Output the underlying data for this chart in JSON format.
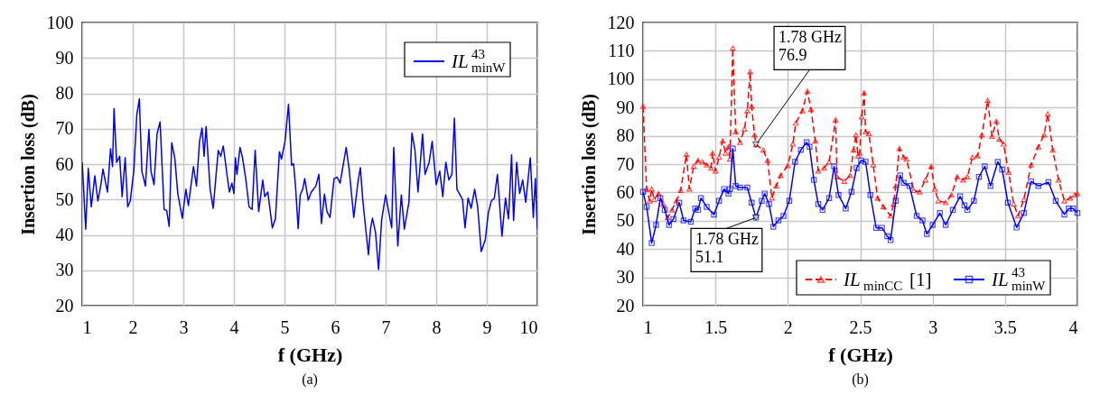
{
  "chart_data": [
    {
      "type": "line",
      "xlabel": "f (GHz)",
      "ylabel": "Insertion loss (dB)",
      "xlim": [
        1,
        10
      ],
      "xticks": [
        1,
        2,
        3,
        4,
        5,
        6,
        7,
        8,
        9,
        10
      ],
      "ylim": [
        20,
        100
      ],
      "yticks": [
        20,
        30,
        40,
        50,
        60,
        70,
        80,
        90,
        100
      ],
      "grid": true,
      "legend": "top right",
      "series": [
        {
          "name": "IL$^{43}$$_{minW}$",
          "color": "#0000ff",
          "line_style": "solid",
          "x": [
            1.0,
            1.07,
            1.12,
            1.18,
            1.25,
            1.31,
            1.37,
            1.41,
            1.5,
            1.56,
            1.6,
            1.63,
            1.68,
            1.74,
            1.79,
            1.85,
            1.9,
            1.95,
            2.02,
            2.08,
            2.13,
            2.18,
            2.25,
            2.32,
            2.36,
            2.42,
            2.48,
            2.54,
            2.62,
            2.67,
            2.72,
            2.77,
            2.83,
            2.89,
            2.98,
            3.05,
            3.1,
            3.2,
            3.26,
            3.32,
            3.37,
            3.41,
            3.45,
            3.53,
            3.59,
            3.69,
            3.74,
            3.79,
            3.87,
            3.91,
            3.96,
            4.0,
            4.03,
            4.06,
            4.12,
            4.17,
            4.23,
            4.3,
            4.36,
            4.42,
            4.49,
            4.57,
            4.61,
            4.67,
            4.76,
            4.82,
            4.9,
            4.94,
            5.01,
            5.08,
            5.14,
            5.18,
            5.22,
            5.27,
            5.31,
            5.36,
            5.4,
            5.47,
            5.53,
            5.62,
            5.68,
            5.73,
            5.79,
            5.84,
            5.9,
            5.98,
            6.04,
            6.1,
            6.16,
            6.22,
            6.28,
            6.37,
            6.45,
            6.5,
            6.55,
            6.61,
            6.66,
            6.7,
            6.74,
            6.8,
            6.86,
            6.92,
            7.0,
            7.06,
            7.12,
            7.16,
            7.24,
            7.31,
            7.37,
            7.46,
            7.52,
            7.58,
            7.64,
            7.73,
            7.78,
            7.86,
            7.92,
            8.0,
            8.07,
            8.13,
            8.19,
            8.25,
            8.31,
            8.36,
            8.41,
            8.47,
            8.52,
            8.57,
            8.63,
            8.69,
            8.76,
            8.82,
            8.89,
            8.97,
            9.03,
            9.09,
            9.15,
            9.21,
            9.3,
            9.37,
            9.43,
            9.49,
            9.53,
            9.59,
            9.65,
            9.71,
            9.77,
            9.86,
            9.92,
            9.96,
            10.0
          ],
          "values": [
            60.5,
            41.6,
            58.8,
            47.9,
            56.7,
            49.6,
            54.2,
            58.6,
            52.1,
            64.3,
            59.3,
            75.7,
            60.5,
            62.2,
            50.8,
            61.8,
            47.9,
            49.6,
            58,
            74,
            78.4,
            58,
            53.8,
            69.8,
            58,
            54.2,
            68.5,
            71.9,
            47.2,
            46.9,
            42.4,
            66,
            61.8,
            51.7,
            44.7,
            52.9,
            48.3,
            59.3,
            53.8,
            66.4,
            70.2,
            62.2,
            70.6,
            52.9,
            47.5,
            63.9,
            62.2,
            65.1,
            56.3,
            52.1,
            54.6,
            51.7,
            61.8,
            57.1,
            64.7,
            61.8,
            56.3,
            47.9,
            47.2,
            63.9,
            46.6,
            55.5,
            50.8,
            52.1,
            42,
            44.5,
            63.5,
            61.4,
            66.4,
            76.9,
            59.7,
            60.1,
            53.4,
            41.8,
            51.2,
            52.9,
            55.9,
            49.8,
            52.1,
            53.8,
            57.1,
            43.2,
            51.5,
            46.6,
            44.9,
            55.9,
            56.3,
            54.6,
            59.7,
            64.7,
            58.4,
            44.9,
            54.6,
            59,
            49.6,
            41.2,
            34.4,
            41.6,
            44.7,
            40.7,
            30.2,
            44.1,
            51.3,
            46.6,
            42,
            64.7,
            36.9,
            51.3,
            41.6,
            49.2,
            68.8,
            63.9,
            52.1,
            68.5,
            57.1,
            60.5,
            66.4,
            54.2,
            58,
            50.8,
            60.5,
            55.5,
            57.1,
            73,
            52.9,
            51.3,
            50,
            42,
            50.4,
            47.5,
            52.9,
            47.9,
            35.3,
            38.6,
            46.2,
            49.6,
            50.4,
            57.1,
            39.6,
            50.4,
            44.5,
            62.6,
            44.1,
            60.5,
            51.7,
            55.5,
            49.2,
            61.8,
            44.9,
            55.9,
            41.6
          ]
        }
      ],
      "annotations": [
        "(a)"
      ]
    },
    {
      "type": "line",
      "xlabel": "f (GHz)",
      "ylabel": "Insertion loss (dB)",
      "xlim": [
        1,
        4
      ],
      "xticks": [
        1,
        1.5,
        2,
        2.5,
        3,
        3.5,
        4
      ],
      "ylim": [
        20,
        120
      ],
      "yticks": [
        20,
        30,
        40,
        50,
        60,
        70,
        80,
        90,
        100,
        110,
        120
      ],
      "grid": true,
      "legend": "bottom right",
      "series": [
        {
          "name": "IL$_{minCC}$ [1]",
          "color": "#ff0000",
          "line_style": "dashed",
          "marker": "triangle",
          "x": [
            1.0,
            1.025,
            1.046,
            1.06,
            1.077,
            1.108,
            1.14,
            1.17,
            1.2,
            1.23,
            1.26,
            1.3,
            1.32,
            1.35,
            1.38,
            1.41,
            1.44,
            1.47,
            1.48,
            1.5,
            1.525,
            1.55,
            1.57,
            1.59,
            1.6,
            1.62,
            1.64,
            1.67,
            1.7,
            1.72,
            1.74,
            1.75,
            1.77,
            1.78,
            1.83,
            1.86,
            1.89,
            1.92,
            1.95,
            2.0,
            2.035,
            2.055,
            2.1,
            2.135,
            2.16,
            2.19,
            2.21,
            2.25,
            2.285,
            2.33,
            2.34,
            2.39,
            2.43,
            2.454,
            2.47,
            2.485,
            2.496,
            2.51,
            2.527,
            2.537,
            2.56,
            2.59,
            2.62,
            2.66,
            2.71,
            2.73,
            2.745,
            2.77,
            2.8,
            2.82,
            2.87,
            2.91,
            2.95,
            2.99,
            3.015,
            3.04,
            3.09,
            3.13,
            3.17,
            3.21,
            3.24,
            3.275,
            3.31,
            3.34,
            3.38,
            3.41,
            3.44,
            3.46,
            3.49,
            3.525,
            3.56,
            3.59,
            3.63,
            3.68,
            3.73,
            3.77,
            3.795,
            3.83,
            3.87,
            3.91,
            3.95,
            3.98,
            4.0
          ],
          "values": [
            90.4,
            61.2,
            57,
            61.2,
            57.5,
            59.6,
            55.9,
            51.1,
            53.8,
            57,
            60.7,
            73.4,
            61.2,
            69.2,
            71.3,
            70.8,
            69.7,
            68.6,
            73.9,
            67.6,
            72.4,
            78.2,
            73.9,
            76.1,
            71.8,
            111,
            81.4,
            77.7,
            82.4,
            88.8,
            102.6,
            90.4,
            80.3,
            76.9,
            75,
            71.3,
            58,
            62.3,
            66,
            69.5,
            77.1,
            84.5,
            88.8,
            95.7,
            89.3,
            78.2,
            67.6,
            68.6,
            70.8,
            85.6,
            65.5,
            63.9,
            66,
            75,
            80.3,
            72.9,
            73.9,
            86.7,
            95.2,
            81.4,
            80.8,
            69.7,
            58,
            54.9,
            51.7,
            55.9,
            62.3,
            75.5,
            72.4,
            71.8,
            60.7,
            60.2,
            64.4,
            69.2,
            61.2,
            57,
            56.4,
            59.1,
            65.5,
            64.4,
            65.5,
            72.4,
            72.9,
            80.3,
            92.5,
            79.8,
            85.1,
            78.8,
            77.1,
            67.1,
            55.9,
            51.7,
            57.5,
            69.7,
            76.1,
            80.3,
            87.7,
            75,
            64.4,
            57,
            58,
            59.1,
            59.6
          ]
        },
        {
          "name": "IL$^{43}$$_{minW}$",
          "color": "#0000ff",
          "line_style": "solid",
          "marker": "square",
          "x": [
            1.0,
            1.025,
            1.06,
            1.09,
            1.12,
            1.15,
            1.18,
            1.21,
            1.25,
            1.28,
            1.33,
            1.36,
            1.38,
            1.4,
            1.44,
            1.49,
            1.525,
            1.56,
            1.59,
            1.6,
            1.62,
            1.64,
            1.67,
            1.72,
            1.75,
            1.78,
            1.82,
            1.84,
            1.87,
            1.9,
            1.935,
            1.97,
            2.01,
            2.05,
            2.09,
            2.13,
            2.15,
            2.18,
            2.21,
            2.24,
            2.285,
            2.32,
            2.35,
            2.4,
            2.44,
            2.475,
            2.506,
            2.537,
            2.57,
            2.61,
            2.65,
            2.687,
            2.71,
            2.745,
            2.776,
            2.8,
            2.84,
            2.89,
            2.93,
            2.96,
            3.0,
            3.05,
            3.09,
            3.14,
            3.19,
            3.22,
            3.24,
            3.285,
            3.32,
            3.36,
            3.4,
            3.45,
            3.48,
            3.52,
            3.58,
            3.63,
            3.68,
            3.73,
            3.8,
            3.85,
            3.91,
            3.94,
            3.97,
            4.0
          ],
          "values": [
            60.2,
            54.9,
            42.1,
            48.5,
            58,
            53.8,
            48.5,
            50.6,
            56.4,
            50.1,
            49.6,
            54.3,
            53.8,
            58,
            54.9,
            52.2,
            57,
            61.2,
            59.6,
            61.2,
            75.5,
            62.3,
            61.7,
            61.7,
            56.4,
            51.1,
            57,
            59.6,
            55.9,
            47.9,
            50.1,
            51.7,
            57,
            70.8,
            75,
            77.7,
            76.1,
            64.4,
            55.9,
            53.8,
            58,
            69.2,
            59.1,
            54.3,
            60.2,
            68.6,
            71.3,
            70.8,
            59.1,
            47.5,
            47.5,
            44.5,
            43.2,
            57,
            66,
            63.4,
            62.3,
            51.7,
            50.1,
            45.3,
            48.5,
            52.7,
            48.5,
            53.8,
            58.6,
            55.4,
            53.8,
            57,
            65.5,
            69.2,
            62.3,
            70.8,
            68.1,
            56.4,
            47.6,
            52.7,
            63.9,
            62.3,
            63.6,
            57,
            52.2,
            54.3,
            54.3,
            52.7
          ]
        }
      ],
      "annotations": [
        {
          "text": "1.78 GHz\n76.9",
          "x": 1.78,
          "y": 76.9
        },
        {
          "text": "1.78 GHz\n51.1",
          "x": 1.78,
          "y": 51.1
        },
        "(b)"
      ]
    }
  ]
}
